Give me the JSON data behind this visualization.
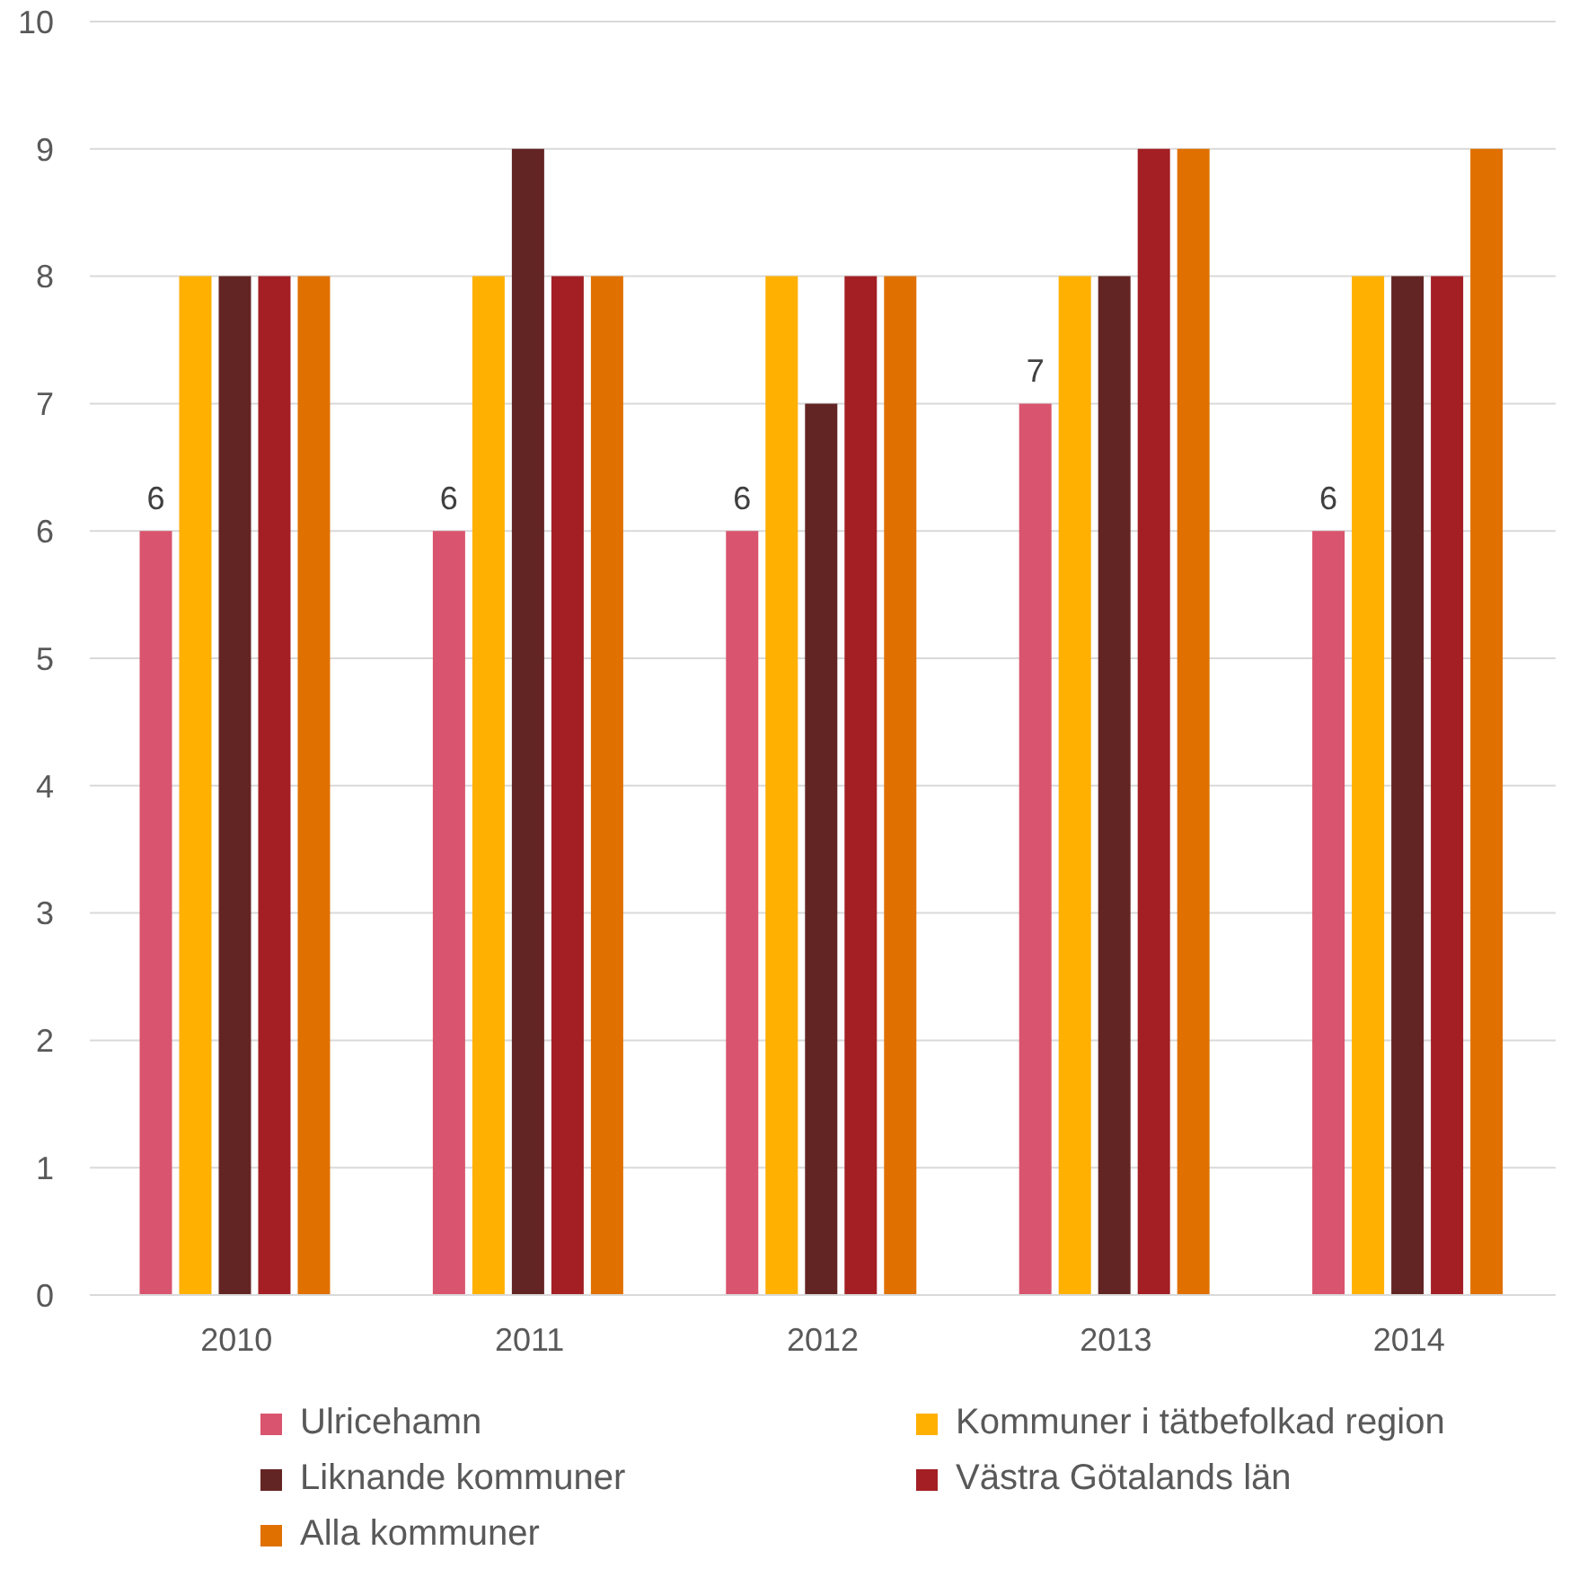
{
  "chart_data": {
    "type": "bar",
    "categories": [
      "2010",
      "2011",
      "2012",
      "2013",
      "2014"
    ],
    "series": [
      {
        "name": "Ulricehamn",
        "color": "#d9546e",
        "values": [
          6,
          6,
          6,
          7,
          6
        ],
        "value_labels": [
          "6",
          "6",
          "6",
          "7",
          "6"
        ]
      },
      {
        "name": "Kommuner i tätbefolkad region",
        "color": "#ffb000",
        "values": [
          8,
          8,
          8,
          8,
          8
        ]
      },
      {
        "name": "Liknande kommuner",
        "color": "#632523",
        "values": [
          8,
          9,
          7,
          8,
          8
        ]
      },
      {
        "name": "Västra Götalands län",
        "color": "#a31f24",
        "values": [
          8,
          8,
          8,
          9,
          8
        ]
      },
      {
        "name": "Alla kommuner",
        "color": "#e07000",
        "values": [
          8,
          8,
          8,
          9,
          9
        ]
      }
    ],
    "ylim": [
      0,
      10
    ],
    "yticks": [
      0,
      1,
      2,
      3,
      4,
      5,
      6,
      7,
      8,
      9,
      10
    ],
    "grid": "y",
    "legend": "bottom"
  }
}
